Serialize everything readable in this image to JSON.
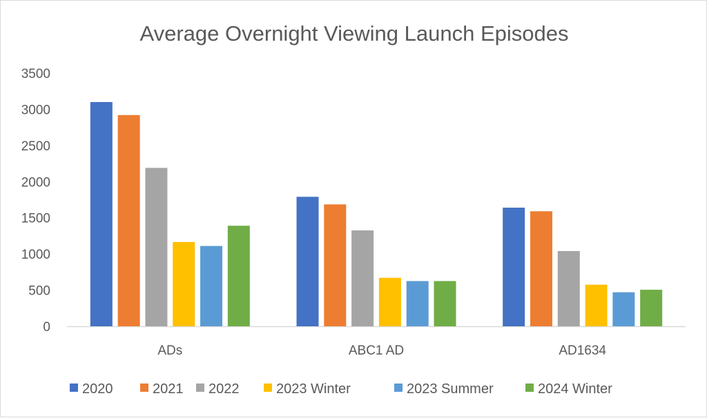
{
  "chart_data": {
    "type": "bar",
    "title": "Average Overnight Viewing Launch Episodes",
    "xlabel": "",
    "ylabel": "",
    "ylim": [
      0,
      3500
    ],
    "yticks": [
      0,
      500,
      1000,
      1500,
      2000,
      2500,
      3000,
      3500
    ],
    "grid": false,
    "legend_position": "bottom",
    "categories": [
      "ADs",
      "ABC1 AD",
      "AD1634"
    ],
    "series": [
      {
        "name": "2020",
        "color": "#4472C4",
        "values": [
          3100,
          1790,
          1640
        ]
      },
      {
        "name": "2021",
        "color": "#ED7D31",
        "values": [
          2920,
          1685,
          1590
        ]
      },
      {
        "name": "2022",
        "color": "#A5A5A5",
        "values": [
          2190,
          1325,
          1040
        ]
      },
      {
        "name": "2023 Winter",
        "color": "#FFC000",
        "values": [
          1165,
          670,
          575
        ]
      },
      {
        "name": "2023 Summer",
        "color": "#5B9BD5",
        "values": [
          1110,
          625,
          470
        ]
      },
      {
        "name": "2024 Winter",
        "color": "#70AD47",
        "values": [
          1390,
          625,
          505
        ]
      }
    ]
  }
}
